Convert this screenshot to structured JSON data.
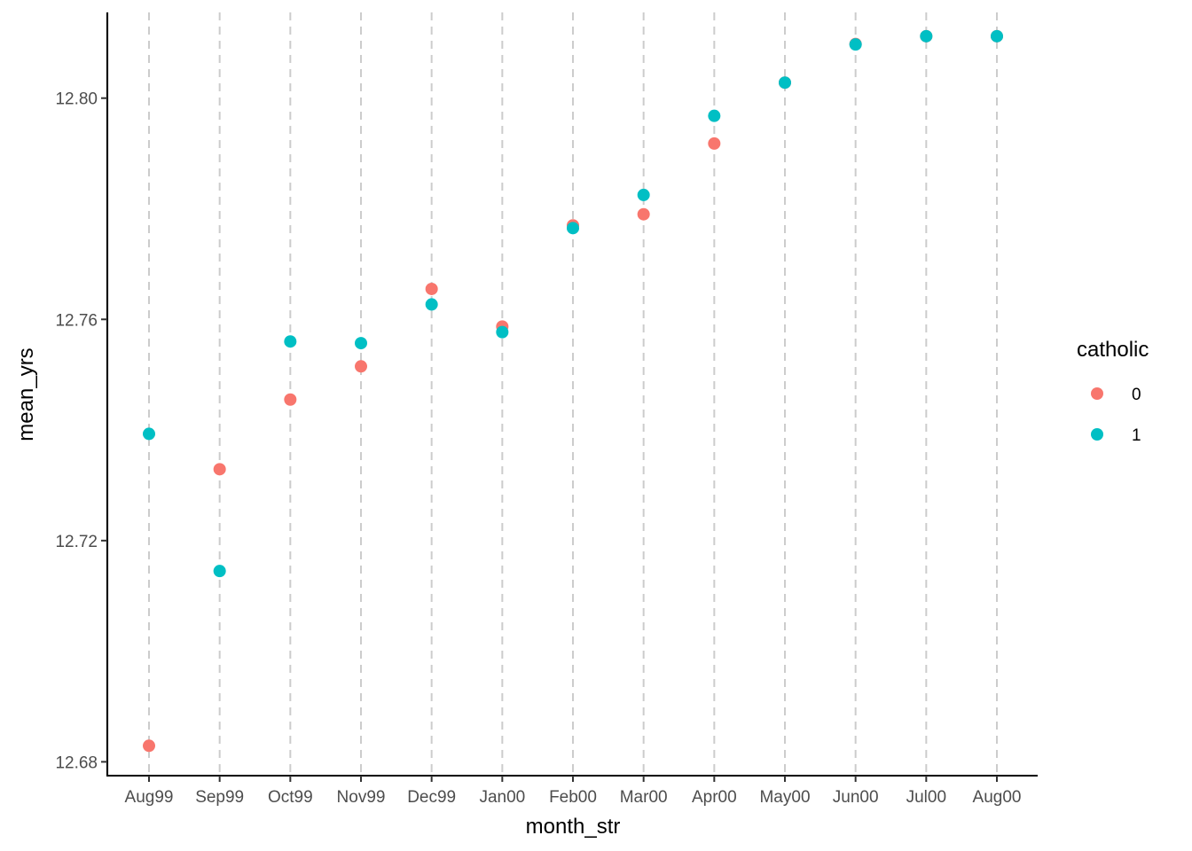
{
  "chart_data": {
    "type": "scatter",
    "xlabel": "month_str",
    "ylabel": "mean_yrs",
    "categories": [
      "Aug99",
      "Sep99",
      "Oct99",
      "Nov99",
      "Dec99",
      "Jan00",
      "Feb00",
      "Mar00",
      "Apr00",
      "May00",
      "Jun00",
      "Jul00",
      "Aug00"
    ],
    "y_ticks": [
      "12.68",
      "12.72",
      "12.76",
      "12.80"
    ],
    "ylim": [
      12.6775,
      12.8155
    ],
    "grid": "vertical dashed lines at each category",
    "legend": {
      "title": "catholic",
      "position": "right",
      "items": [
        {
          "label": "0",
          "color": "#F8766D"
        },
        {
          "label": "1",
          "color": "#00BFC4"
        }
      ]
    },
    "series": [
      {
        "name": "0",
        "color": "#F8766D",
        "values": [
          12.6829,
          12.7329,
          12.7455,
          12.7515,
          12.7655,
          12.7587,
          12.777,
          12.779,
          12.7918,
          12.8028,
          12.8098,
          12.8112,
          12.8112
        ]
      },
      {
        "name": "1",
        "color": "#00BFC4",
        "values": [
          12.7393,
          12.7145,
          12.756,
          12.7557,
          12.7627,
          12.7577,
          12.7765,
          12.7825,
          12.7968,
          12.8028,
          12.8097,
          12.8112,
          12.8112
        ]
      }
    ]
  }
}
